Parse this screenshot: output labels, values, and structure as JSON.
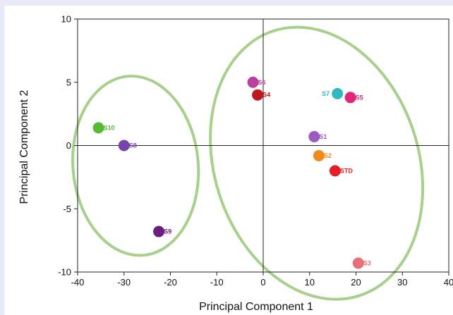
{
  "chart_data": {
    "type": "scatter",
    "title": "",
    "xlabel": "Principal Component 1",
    "ylabel": "Principal Component 2",
    "xlim": [
      -40,
      40
    ],
    "ylim": [
      -10,
      10
    ],
    "x_ticks": [
      -40,
      -30,
      -20,
      -10,
      0,
      10,
      20,
      30,
      40
    ],
    "x_tick_labels": [
      "-40",
      "-30",
      "-20",
      "-10",
      "0",
      "10",
      "20",
      "30",
      "40"
    ],
    "y_ticks": [
      -10,
      -5,
      0,
      5,
      10
    ],
    "y_tick_labels": [
      "-10",
      "-5",
      "0",
      "5",
      "10"
    ],
    "grid": false,
    "reference_lines": {
      "x": 0,
      "y": 0
    },
    "points": [
      {
        "label": "S10",
        "x": -35.5,
        "y": 1.4,
        "color": "#55bb33"
      },
      {
        "label": "S8",
        "x": -30.0,
        "y": 0.0,
        "color": "#7744aa"
      },
      {
        "label": "S9",
        "x": -22.5,
        "y": -6.8,
        "color": "#6a1f80"
      },
      {
        "label": "S6",
        "x": -2.2,
        "y": 5.0,
        "color": "#bb3f9e"
      },
      {
        "label": "S4",
        "x": -1.2,
        "y": 4.0,
        "color": "#c0181e"
      },
      {
        "label": "S7",
        "x": 16.0,
        "y": 4.1,
        "color": "#33b8c2"
      },
      {
        "label": "S5",
        "x": 18.8,
        "y": 3.8,
        "color": "#e3267a"
      },
      {
        "label": "S1",
        "x": 11.0,
        "y": 0.7,
        "color": "#9b5cc0"
      },
      {
        "label": "S2",
        "x": 12.0,
        "y": -0.8,
        "color": "#f08a1e"
      },
      {
        "label": "STD",
        "x": 15.5,
        "y": -2.0,
        "color": "#e31e24"
      },
      {
        "label": "S3",
        "x": 20.5,
        "y": -9.3,
        "color": "#ea6f7a"
      }
    ],
    "groups": [
      {
        "members": [
          "S10",
          "S8",
          "S9"
        ],
        "center": [
          -27.5,
          -1.6
        ],
        "rx": 13.5,
        "ry": 7.1,
        "rotation_deg": -5,
        "color": "#a8d08d"
      },
      {
        "members": [
          "S6",
          "S4",
          "S7",
          "S5",
          "S1",
          "S2",
          "STD",
          "S3"
        ],
        "center": [
          11.5,
          -1.4
        ],
        "rx": 22.0,
        "ry": 11.0,
        "rotation_deg": -18,
        "color": "#a8d08d"
      }
    ]
  }
}
